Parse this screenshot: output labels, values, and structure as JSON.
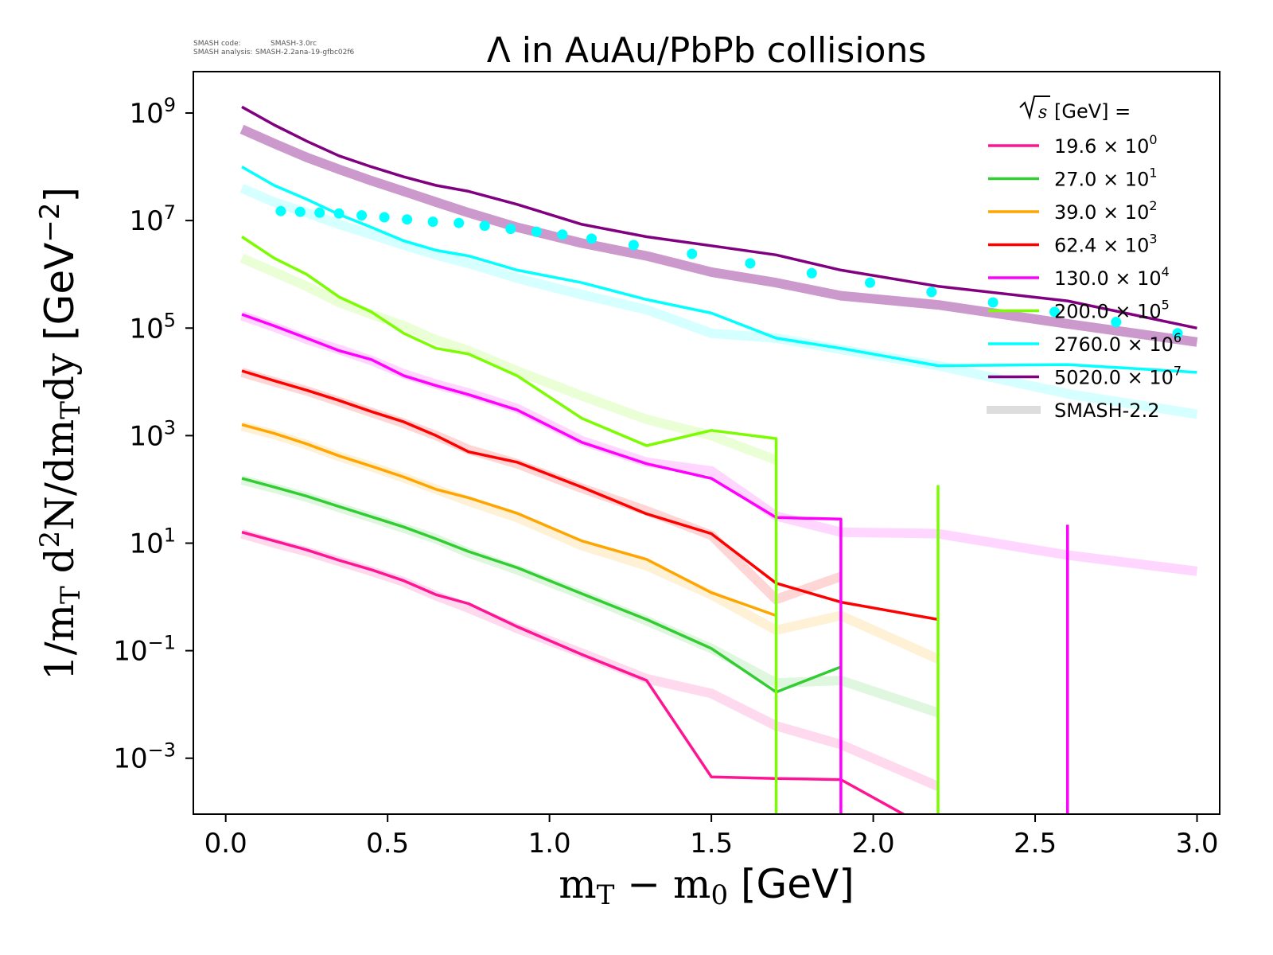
{
  "chart_data": {
    "type": "line",
    "title": "Λ in AuAu/PbPb collisions",
    "annotation": {
      "line1_label": "SMASH code:",
      "line1_value": "SMASH-3.0rc",
      "line2_label": "SMASH analysis:",
      "line2_value": "SMASH-2.2ana-19-gfbc02f6"
    },
    "xlabel": "m_T − m_0 [GeV]",
    "xlabel_parts": {
      "m": "m",
      "sub_t": "T",
      "minus": " − m",
      "sub_0": "0",
      "unit": " [GeV]"
    },
    "ylabel": "1/m_T d²N/dm_T dy [GeV⁻²]",
    "ylabel_parts": {
      "pre": "1/m",
      "sub1": "T",
      "mid1": " d",
      "sup1": "2",
      "mid2": "N/dm",
      "sub2": "T",
      "mid3": "dy ",
      "unit": "[GeV",
      "sup2": "−2",
      "close": "]"
    },
    "xscale": "linear",
    "yscale": "log",
    "xlim": [
      -0.1,
      3.07
    ],
    "ylim_log10": [
      -4.04,
      9.77
    ],
    "x_ticks": [
      {
        "value": 0.0,
        "label": "0.0"
      },
      {
        "value": 0.5,
        "label": "0.5"
      },
      {
        "value": 1.0,
        "label": "1.0"
      },
      {
        "value": 1.5,
        "label": "1.5"
      },
      {
        "value": 2.0,
        "label": "2.0"
      },
      {
        "value": 2.5,
        "label": "2.5"
      },
      {
        "value": 3.0,
        "label": "3.0"
      }
    ],
    "y_ticks": [
      {
        "exp": 9,
        "base": "10",
        "sup": "9"
      },
      {
        "exp": 7,
        "base": "10",
        "sup": "7"
      },
      {
        "exp": 5,
        "base": "10",
        "sup": "5"
      },
      {
        "exp": 3,
        "base": "10",
        "sup": "3"
      },
      {
        "exp": 1,
        "base": "10",
        "sup": "1"
      },
      {
        "exp": -1,
        "base": "10",
        "sup": "−1"
      },
      {
        "exp": -3,
        "base": "10",
        "sup": "−3"
      }
    ],
    "grid": false,
    "legend": {
      "placement": "top-right",
      "title_sqrt": "s",
      "title_rest": " [GeV] =",
      "entries": [
        {
          "name": "19.6",
          "scale_exp": "0",
          "label": "19.6 × 10",
          "color": "#ff1493"
        },
        {
          "name": "27.0",
          "scale_exp": "1",
          "label": "27.0 × 10",
          "color": "#32cd32"
        },
        {
          "name": "39.0",
          "scale_exp": "2",
          "label": "39.0 × 10",
          "color": "#ffa500"
        },
        {
          "name": "62.4",
          "scale_exp": "3",
          "label": "62.4 × 10",
          "color": "#ff0000"
        },
        {
          "name": "130.0",
          "scale_exp": "4",
          "label": "130.0 × 10",
          "color": "#ff00ff"
        },
        {
          "name": "200.0",
          "scale_exp": "5",
          "label": "200.0 × 10",
          "color": "#7cfc00"
        },
        {
          "name": "2760.0",
          "scale_exp": "6",
          "label": "2760.0 × 10",
          "color": "#00ffff"
        },
        {
          "name": "5020.0",
          "scale_exp": "7",
          "label": "5020.0 × 10",
          "color": "#800080"
        },
        {
          "name": "SMASH-2.2",
          "scale_exp": "",
          "label": "SMASH-2.2",
          "color": "#dddddd"
        }
      ]
    },
    "series": [
      {
        "name": "19.6 × 10^0 (SMASH-3.0rc)",
        "color": "#ff1493",
        "x": [
          0.05,
          0.15,
          0.25,
          0.35,
          0.45,
          0.55,
          0.65,
          0.75,
          0.9,
          1.1,
          1.3,
          1.5,
          1.7,
          1.9,
          2.2
        ],
        "y": [
          16,
          11,
          7.5,
          4.8,
          3.2,
          2.0,
          1.1,
          0.75,
          0.28,
          0.085,
          0.028,
          0.00045,
          0.00042,
          0.0004,
          4e-05
        ]
      },
      {
        "name": "27.0 × 10^1 (SMASH-3.0rc)",
        "color": "#32cd32",
        "x": [
          0.05,
          0.15,
          0.25,
          0.35,
          0.45,
          0.55,
          0.65,
          0.75,
          0.9,
          1.1,
          1.3,
          1.5,
          1.7,
          1.9
        ],
        "y": [
          160,
          110,
          75,
          48,
          31,
          20,
          12,
          7.0,
          3.5,
          1.15,
          0.38,
          0.11,
          0.017,
          0.05
        ]
      },
      {
        "name": "39.0 × 10^2 (SMASH-3.0rc)",
        "color": "#ffa500",
        "x": [
          0.05,
          0.15,
          0.25,
          0.35,
          0.45,
          0.55,
          0.65,
          0.75,
          0.9,
          1.1,
          1.3,
          1.5,
          1.7
        ],
        "y": [
          1600,
          1100,
          700,
          420,
          270,
          170,
          100,
          70,
          36,
          11,
          5.0,
          1.2,
          0.45
        ]
      },
      {
        "name": "62.4 × 10^3 (SMASH-3.0rc)",
        "color": "#ff0000",
        "x": [
          0.05,
          0.15,
          0.25,
          0.35,
          0.45,
          0.55,
          0.65,
          0.75,
          0.9,
          1.1,
          1.3,
          1.5,
          1.7,
          1.9,
          2.2
        ],
        "y": [
          16000,
          10500,
          7000,
          4500,
          2800,
          1800,
          1000,
          500,
          320,
          110,
          35,
          15,
          1.8,
          0.8,
          0.38
        ]
      },
      {
        "name": "130.0 × 10^4 (SMASH-3.0rc)",
        "color": "#ff00ff",
        "x": [
          0.05,
          0.15,
          0.25,
          0.35,
          0.45,
          0.55,
          0.65,
          0.75,
          0.9,
          1.1,
          1.3,
          1.5,
          1.7,
          1.9,
          1.9,
          2.6,
          2.6
        ],
        "y": [
          180000,
          110000,
          65000,
          38000,
          26000,
          13000,
          8500,
          5800,
          3000,
          750,
          300,
          160,
          30,
          28,
          5e-05,
          5e-05,
          22
        ]
      },
      {
        "name": "200.0 × 10^5 (SMASH-3.0rc)",
        "color": "#7cfc00",
        "x": [
          0.05,
          0.15,
          0.25,
          0.35,
          0.45,
          0.55,
          0.65,
          0.75,
          0.9,
          1.1,
          1.3,
          1.5,
          1.7,
          1.7,
          2.2,
          2.2
        ],
        "y": [
          5000000,
          2000000,
          1000000,
          380000,
          200000,
          80000,
          42000,
          33000,
          13000,
          2100,
          650,
          1250,
          880,
          5e-05,
          5e-05,
          120
        ]
      },
      {
        "name": "2760.0 × 10^6 (SMASH-3.0rc)",
        "color": "#00ffff",
        "x": [
          0.05,
          0.15,
          0.25,
          0.35,
          0.45,
          0.55,
          0.65,
          0.75,
          0.9,
          1.1,
          1.3,
          1.5,
          1.7,
          1.9,
          2.2,
          2.6,
          3.0
        ],
        "y": [
          100000000,
          45000000,
          25000000,
          13000000,
          7500000,
          4200000,
          2800000,
          2200000,
          1200000,
          700000,
          340000,
          190000,
          65000,
          42000,
          20000,
          21000,
          15000
        ]
      },
      {
        "name": "5020.0 × 10^7 (SMASH-3.0rc)",
        "color": "#800080",
        "x": [
          0.05,
          0.15,
          0.25,
          0.35,
          0.45,
          0.55,
          0.65,
          0.75,
          0.9,
          1.1,
          1.3,
          1.5,
          1.7,
          1.9,
          2.2,
          2.6,
          3.0
        ],
        "y": [
          1300000000,
          600000000,
          300000000,
          160000000,
          100000000,
          65000000,
          45000000,
          35000000,
          20000000,
          8500000,
          5000000,
          3400000,
          2300000,
          1200000,
          600000,
          320000,
          100000
        ]
      },
      {
        "name": "19.6 × 10^0 (SMASH-2.2)",
        "color": "#ff1493",
        "reference": true,
        "x": [
          0.05,
          0.15,
          0.25,
          0.35,
          0.45,
          0.55,
          0.65,
          0.75,
          0.9,
          1.1,
          1.3,
          1.5,
          1.7,
          1.9,
          2.2
        ],
        "y": [
          15,
          10,
          7,
          4.6,
          3.0,
          1.9,
          1.05,
          0.62,
          0.26,
          0.09,
          0.03,
          0.016,
          0.004,
          0.0018,
          0.0003
        ]
      },
      {
        "name": "27.0 × 10^1 (SMASH-2.2)",
        "color": "#32cd32",
        "reference": true,
        "x": [
          0.05,
          0.15,
          0.25,
          0.35,
          0.45,
          0.55,
          0.65,
          0.75,
          0.9,
          1.1,
          1.3,
          1.5,
          1.7,
          1.9,
          2.2
        ],
        "y": [
          150,
          105,
          72,
          46,
          30,
          19,
          12,
          6.6,
          3.2,
          1.1,
          0.36,
          0.11,
          0.025,
          0.028,
          0.007
        ]
      },
      {
        "name": "39.0 × 10^2 (SMASH-2.2)",
        "color": "#ffa500",
        "reference": true,
        "x": [
          0.05,
          0.15,
          0.25,
          0.35,
          0.45,
          0.55,
          0.65,
          0.75,
          0.9,
          1.1,
          1.3,
          1.5,
          1.7,
          1.9,
          2.2
        ],
        "y": [
          1500,
          1050,
          680,
          410,
          265,
          165,
          100,
          60,
          30,
          9,
          3.8,
          1.1,
          0.24,
          0.45,
          0.07
        ]
      },
      {
        "name": "62.4 × 10^3 (SMASH-2.2)",
        "color": "#ff0000",
        "reference": true,
        "x": [
          0.05,
          0.15,
          0.25,
          0.35,
          0.45,
          0.55,
          0.65,
          0.75,
          0.9,
          1.1,
          1.3,
          1.5,
          1.7,
          1.9
        ],
        "y": [
          15000,
          10000,
          6800,
          4300,
          2700,
          1700,
          1000,
          550,
          300,
          105,
          40,
          14,
          0.9,
          2.4
        ]
      },
      {
        "name": "130.0 × 10^4 (SMASH-2.2)",
        "color": "#ff00ff",
        "reference": true,
        "x": [
          0.05,
          0.15,
          0.25,
          0.35,
          0.45,
          0.55,
          0.65,
          0.75,
          0.9,
          1.1,
          1.3,
          1.5,
          1.7,
          1.9,
          2.2,
          2.6,
          3.0
        ],
        "y": [
          170000,
          105000,
          62000,
          40000,
          25000,
          14000,
          9000,
          6200,
          3200,
          800,
          320,
          220,
          32,
          16,
          15,
          6,
          3
        ]
      },
      {
        "name": "200.0 × 10^5 (SMASH-2.2)",
        "color": "#7cfc00",
        "reference": true,
        "x": [
          0.05,
          0.15,
          0.25,
          0.35,
          0.45,
          0.55,
          0.65,
          0.75,
          0.9,
          1.1,
          1.3,
          1.5,
          1.7
        ],
        "y": [
          2000000,
          1100000,
          600000,
          300000,
          180000,
          110000,
          60000,
          38000,
          16000,
          5500,
          2000,
          1000,
          350
        ]
      },
      {
        "name": "2760.0 × 10^6 (SMASH-2.2)",
        "color": "#00ffff",
        "reference": true,
        "x": [
          0.05,
          0.15,
          0.25,
          0.35,
          0.45,
          0.55,
          0.65,
          0.75,
          0.9,
          1.1,
          1.3,
          1.5,
          1.7,
          1.9,
          2.2,
          2.6,
          3.0
        ],
        "y": [
          40000000,
          22000000,
          14000000,
          8500000,
          5500000,
          3500000,
          2300000,
          1600000,
          850000,
          420000,
          220000,
          80000,
          65000,
          40000,
          20000,
          6000,
          2500
        ]
      },
      {
        "name": "5020.0 × 10^7 (SMASH-2.2)",
        "color": "#800080",
        "reference": true,
        "x": [
          0.05,
          0.15,
          0.25,
          0.35,
          0.45,
          0.55,
          0.65,
          0.75,
          0.9,
          1.1,
          1.3,
          1.5,
          1.7,
          1.9,
          2.2,
          2.6,
          3.0
        ],
        "y": [
          500000000,
          270000000,
          150000000,
          90000000,
          55000000,
          35000000,
          22000000,
          14000000,
          7500000,
          3800000,
          2200000,
          1100000,
          700000,
          400000,
          270000,
          120000,
          55000
        ]
      },
      {
        "name": "5020.0 × 10^7 (experimental data)",
        "color": "#00ffff",
        "markers": true,
        "x": [
          0.17,
          0.23,
          0.29,
          0.35,
          0.42,
          0.49,
          0.56,
          0.64,
          0.72,
          0.8,
          0.88,
          0.96,
          1.04,
          1.13,
          1.26,
          1.44,
          1.62,
          1.81,
          1.99,
          2.18,
          2.37,
          2.56,
          2.75,
          2.94
        ],
        "y": [
          15000000,
          14500000,
          14000000,
          13500000,
          12500000,
          11500000,
          10500000,
          9500000,
          9000000,
          8000000,
          7000000,
          6200000,
          5500000,
          4600000,
          3500000,
          2400000,
          1600000,
          1050000,
          700000,
          470000,
          300000,
          200000,
          130000,
          80000
        ]
      }
    ]
  }
}
